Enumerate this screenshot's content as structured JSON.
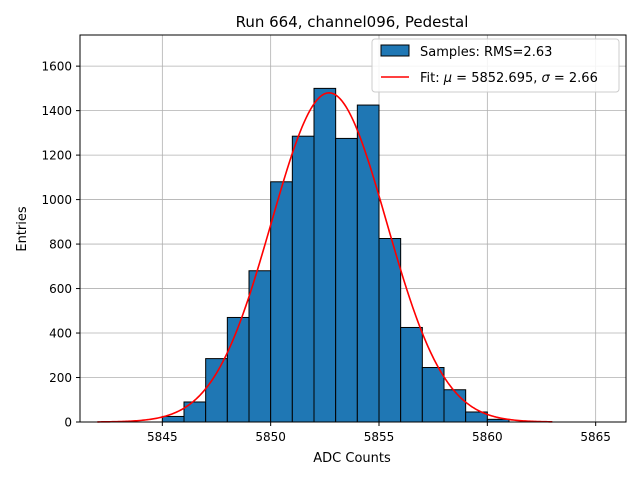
{
  "chart_data": {
    "type": "bar",
    "title": "Run 664, channel096, Pedestal",
    "xlabel": "ADC Counts",
    "ylabel": "Entries",
    "xlim": [
      5841.2,
      5866.4
    ],
    "ylim": [
      0,
      1740
    ],
    "grid": true,
    "legend_position": "top-right",
    "xticks": [
      5845,
      5850,
      5855,
      5860,
      5865
    ],
    "yticks": [
      0,
      200,
      400,
      600,
      800,
      1000,
      1200,
      1400,
      1600
    ],
    "bin_edges": [
      5845,
      5846,
      5847,
      5848,
      5849,
      5850,
      5851,
      5852,
      5853,
      5854,
      5855,
      5856,
      5857,
      5858,
      5859,
      5860,
      5861
    ],
    "values": [
      25,
      90,
      285,
      470,
      680,
      1080,
      1285,
      1500,
      1275,
      1425,
      825,
      425,
      245,
      145,
      45,
      12
    ],
    "series": [
      {
        "name": "Samples: RMS=2.63",
        "kind": "histogram",
        "color": "#1f77b4",
        "edgecolor": "#000000"
      },
      {
        "name": "Fit: μ = 5852.695, σ = 2.66",
        "kind": "gaussian-fit",
        "color": "#ff0000",
        "mu": 5852.695,
        "sigma": 2.66,
        "amplitude": 1480,
        "x_range": [
          5842,
          5863
        ]
      }
    ],
    "legend": [
      {
        "label_prefix": "Samples: RMS=2.63",
        "symbol": "patch"
      },
      {
        "label_parts": [
          "Fit: ",
          "μ",
          " = 5852.695, ",
          "σ",
          " = 2.66"
        ],
        "symbol": "line"
      }
    ]
  }
}
